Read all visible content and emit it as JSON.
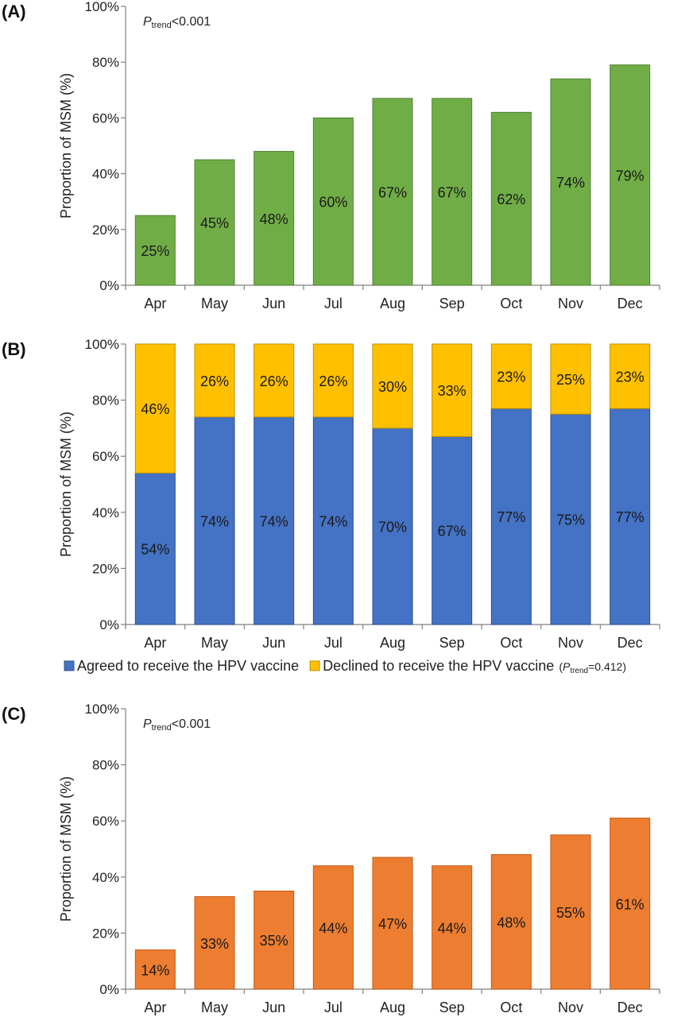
{
  "chart_data": [
    {
      "panel_label": "(A)",
      "type": "bar",
      "categories": [
        "Apr",
        "May",
        "Jun",
        "Jul",
        "Aug",
        "Sep",
        "Oct",
        "Nov",
        "Dec"
      ],
      "values": [
        25,
        45,
        48,
        60,
        67,
        67,
        62,
        74,
        79
      ],
      "value_labels": [
        "25%",
        "45%",
        "48%",
        "60%",
        "67%",
        "67%",
        "62%",
        "74%",
        "79%"
      ],
      "ylabel": "Proportion of MSM (%)",
      "ylim": [
        0,
        100
      ],
      "yticks": [
        "0%",
        "20%",
        "40%",
        "60%",
        "80%",
        "100%"
      ],
      "color": "#70ad47",
      "edge_color": "#548235",
      "annotation": {
        "p": "P",
        "sub": "trend",
        "rest": "<0.001"
      }
    },
    {
      "panel_label": "(B)",
      "type": "bar",
      "stacked": true,
      "categories": [
        "Apr",
        "May",
        "Jun",
        "Jul",
        "Aug",
        "Sep",
        "Oct",
        "Nov",
        "Dec"
      ],
      "series": [
        {
          "name": "Agreed to receive the HPV vaccine",
          "color": "#4472c4",
          "values": [
            54,
            74,
            74,
            74,
            70,
            67,
            77,
            75,
            77
          ],
          "value_labels": [
            "54%",
            "74%",
            "74%",
            "74%",
            "70%",
            "67%",
            "77%",
            "75%",
            "77%"
          ]
        },
        {
          "name": "Declined to receive the HPV vaccine",
          "color": "#ffc000",
          "values": [
            46,
            26,
            26,
            26,
            30,
            33,
            23,
            25,
            23
          ],
          "value_labels": [
            "46%",
            "26%",
            "26%",
            "26%",
            "30%",
            "33%",
            "23%",
            "25%",
            "23%"
          ]
        }
      ],
      "ylabel": "Proportion of MSM (%)",
      "ylim": [
        0,
        100
      ],
      "yticks": [
        "0%",
        "20%",
        "40%",
        "60%",
        "80%",
        "100%"
      ],
      "legend_placement": "bottom",
      "legend_note": {
        "open": "(",
        "p": "P",
        "sub": "trend",
        "rest": "=0.412)"
      }
    },
    {
      "panel_label": "(C)",
      "type": "bar",
      "categories": [
        "Apr",
        "May",
        "Jun",
        "Jul",
        "Aug",
        "Sep",
        "Oct",
        "Nov",
        "Dec"
      ],
      "values": [
        14,
        33,
        35,
        44,
        47,
        44,
        48,
        55,
        61
      ],
      "value_labels": [
        "14%",
        "33%",
        "35%",
        "44%",
        "47%",
        "44%",
        "48%",
        "55%",
        "61%"
      ],
      "ylabel": "Proportion of MSM (%)",
      "ylim": [
        0,
        100
      ],
      "yticks": [
        "0%",
        "20%",
        "40%",
        "60%",
        "80%",
        "100%"
      ],
      "color": "#ed7d31",
      "edge_color": "#c55a11",
      "annotation": {
        "p": "P",
        "sub": "trend",
        "rest": "<0.001"
      }
    }
  ]
}
